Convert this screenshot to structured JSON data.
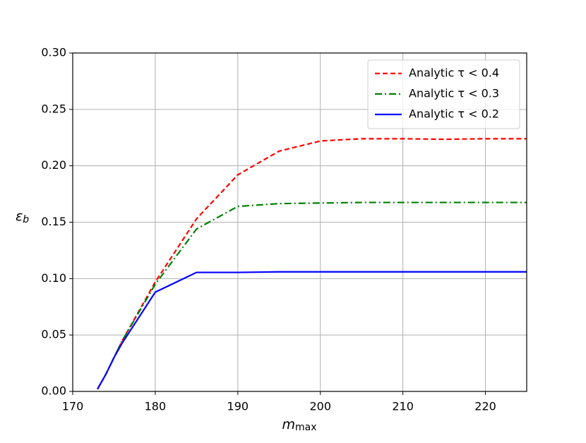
{
  "chart_data": {
    "type": "line",
    "xlabel": {
      "base": "m",
      "sub": "max"
    },
    "ylabel": {
      "base": "ε",
      "sub": "b"
    },
    "x": [
      173,
      174,
      175,
      176,
      180,
      185,
      190,
      195,
      200,
      205,
      210,
      215,
      220,
      225
    ],
    "series": [
      {
        "name": "Analytic τ < 0.4",
        "color": "#ff0000",
        "style": "dashed",
        "values": [
          0.002,
          0.015,
          0.03,
          0.045,
          0.097,
          0.153,
          0.192,
          0.213,
          0.222,
          0.224,
          0.224,
          0.2235,
          0.224,
          0.224
        ]
      },
      {
        "name": "Analytic τ < 0.3",
        "color": "#008000",
        "style": "dashdot",
        "values": [
          0.002,
          0.015,
          0.03,
          0.045,
          0.095,
          0.144,
          0.164,
          0.1665,
          0.167,
          0.1675,
          0.1675,
          0.1675,
          0.1675,
          0.1675
        ]
      },
      {
        "name": "Analytic τ < 0.2",
        "color": "#0000ff",
        "style": "solid",
        "values": [
          0.002,
          0.015,
          0.03,
          0.043,
          0.088,
          0.1055,
          0.1055,
          0.106,
          0.106,
          0.106,
          0.106,
          0.106,
          0.106,
          0.106
        ]
      }
    ],
    "xlim": [
      170,
      225
    ],
    "xticks": [
      170,
      180,
      190,
      200,
      210,
      220
    ],
    "ylim": [
      0,
      0.3
    ],
    "yticks": [
      {
        "value": 0,
        "label": "0.00"
      },
      {
        "value": 0.05,
        "label": "0.05"
      },
      {
        "value": 0.1,
        "label": "0.10"
      },
      {
        "value": 0.15,
        "label": "0.15"
      },
      {
        "value": 0.2,
        "label": "0.20"
      },
      {
        "value": 0.25,
        "label": "0.25"
      },
      {
        "value": 0.3,
        "label": "0.30"
      }
    ],
    "grid": true,
    "legend": "upper right"
  }
}
